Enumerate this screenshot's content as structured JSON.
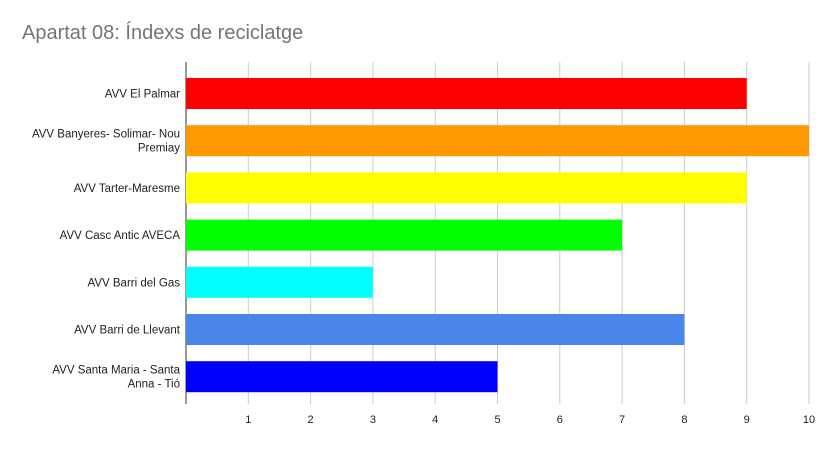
{
  "chart_data": {
    "type": "bar",
    "orientation": "horizontal",
    "title": "Apartat 08: Índexs de reciclatge",
    "xlabel": "",
    "ylabel": "",
    "grid": true,
    "xlim": [
      0,
      10
    ],
    "x_ticks": [
      "1",
      "2",
      "3",
      "4",
      "5",
      "6",
      "7",
      "8",
      "9",
      "10"
    ],
    "categories": [
      [
        "AVV El Palmar"
      ],
      [
        "AVV Banyeres- Solimar- Nou",
        "Premiay"
      ],
      [
        "AVV Tarter-Maresme"
      ],
      [
        "AVV Casc Antic AVECA"
      ],
      [
        "AVV Barri del Gas"
      ],
      [
        "AVV Barri de Llevant"
      ],
      [
        "AVV Santa Maria - Santa",
        "Anna - Tió"
      ]
    ],
    "values": [
      9,
      10,
      9,
      7,
      3,
      8,
      5
    ],
    "colors": [
      "#ff0000",
      "#ff9900",
      "#ffff00",
      "#00ff00",
      "#00ffff",
      "#4a86e8",
      "#0000ff"
    ]
  }
}
